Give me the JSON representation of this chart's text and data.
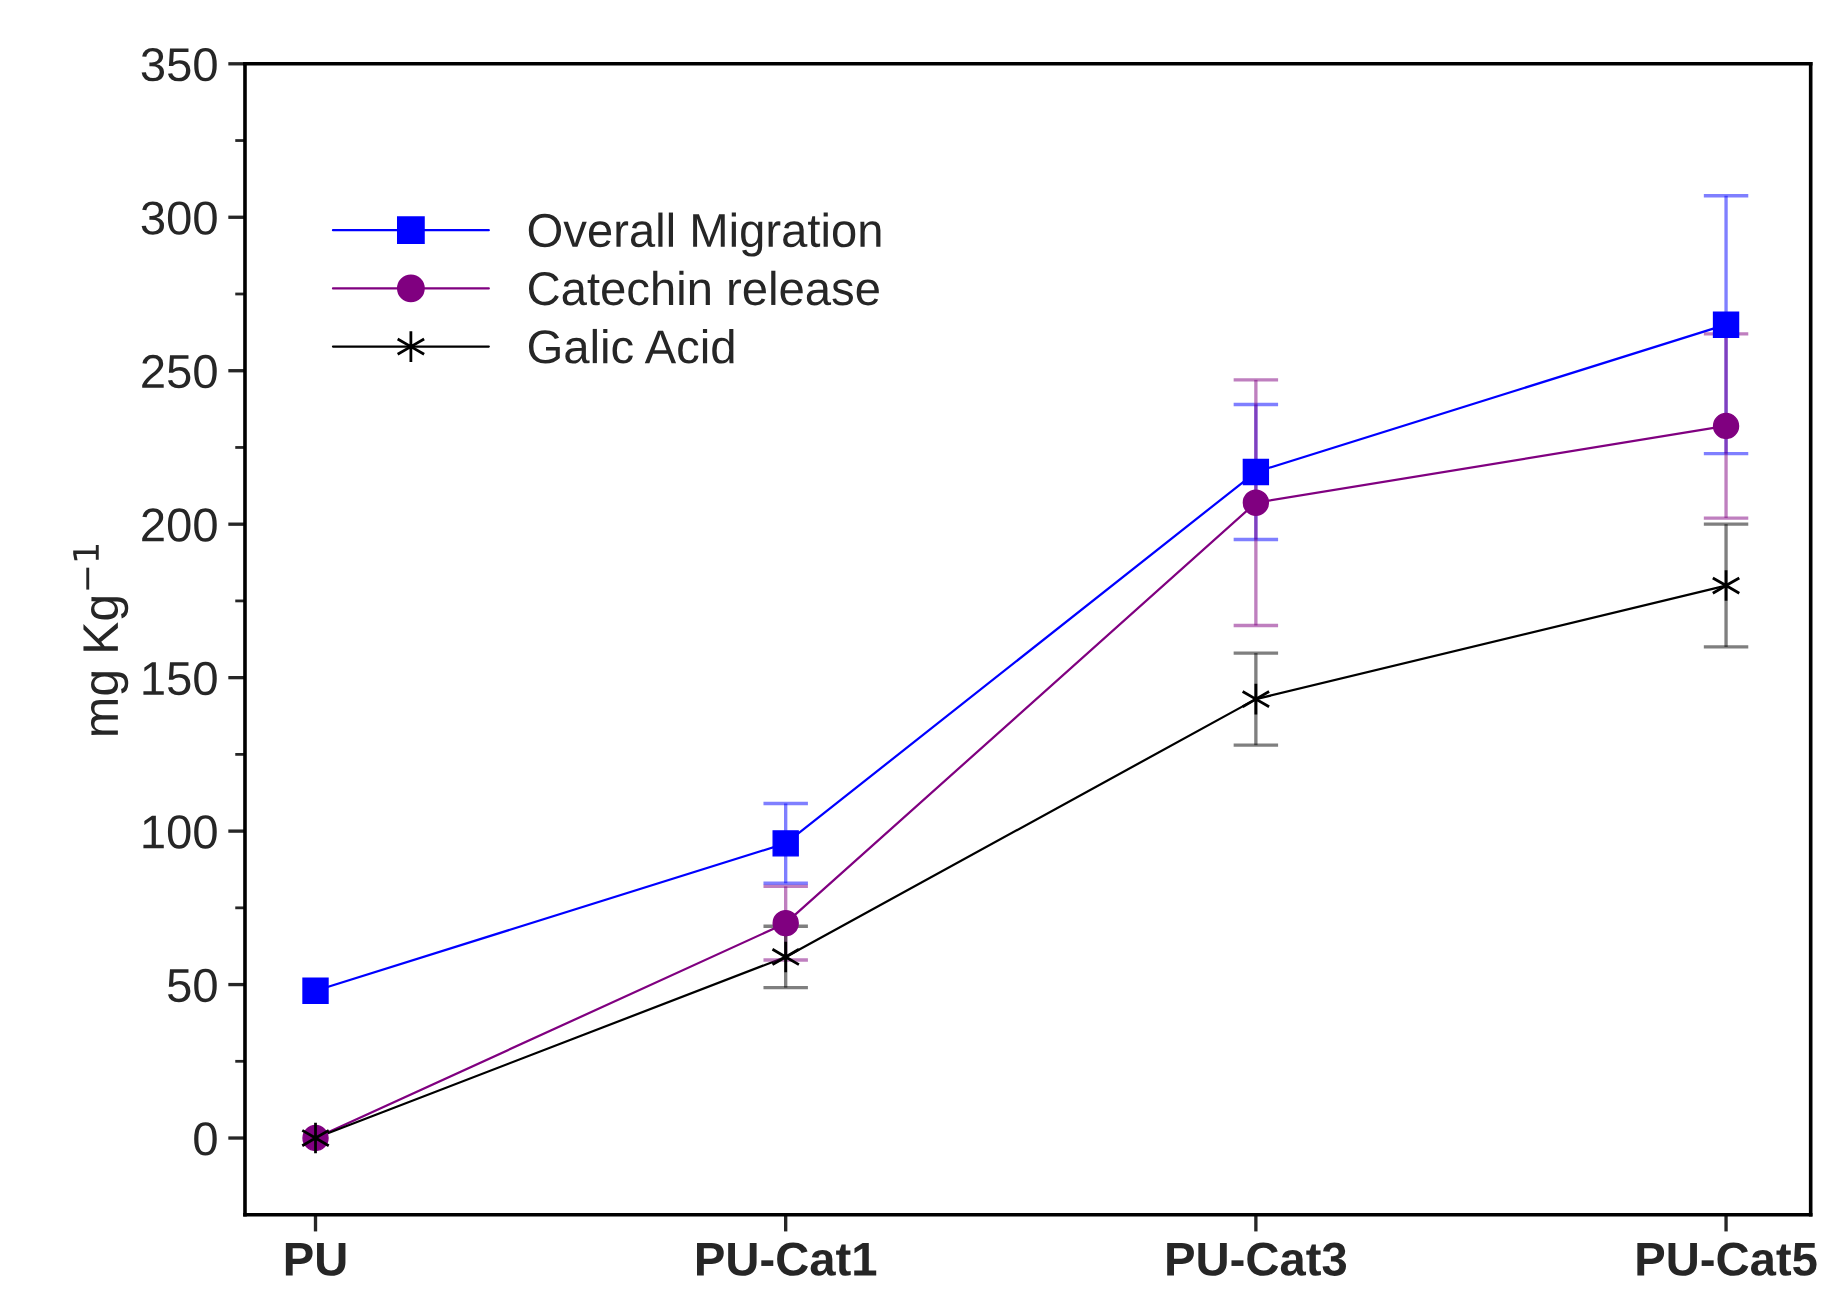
{
  "chart_data": {
    "type": "line",
    "ylabel": "mg Kg$^{−1}$",
    "categories": [
      "PU",
      "PU-Cat1",
      "PU-Cat3",
      "PU-Cat5"
    ],
    "series": [
      {
        "name": "Overall Migration",
        "color": "#0000ff",
        "marker": "square",
        "values": [
          48,
          96,
          217,
          265
        ],
        "errors": [
          null,
          13,
          22,
          42
        ]
      },
      {
        "name": "Catechin release",
        "color": "#800080",
        "marker": "circle",
        "values": [
          0,
          70,
          207,
          232
        ],
        "errors": [
          null,
          12,
          40,
          30
        ]
      },
      {
        "name": "Galic Acid",
        "color": "#000000",
        "marker": "cross",
        "values": [
          0,
          59,
          143,
          180
        ],
        "errors": [
          null,
          10,
          15,
          20
        ]
      }
    ],
    "ylim": [
      -25,
      350
    ],
    "yticks": [
      0,
      {
        "value": 25,
        "label": null
      },
      50,
      {
        "value": 75,
        "label": null
      },
      100,
      {
        "value": 125,
        "label": null
      },
      150,
      {
        "value": 175,
        "label": null
      },
      200,
      {
        "value": 225,
        "label": null
      },
      250,
      {
        "value": 275,
        "label": null
      },
      300,
      {
        "value": 325,
        "label": null
      },
      350
    ],
    "legend": "top left",
    "grid": false,
    "line_style": "solid"
  }
}
